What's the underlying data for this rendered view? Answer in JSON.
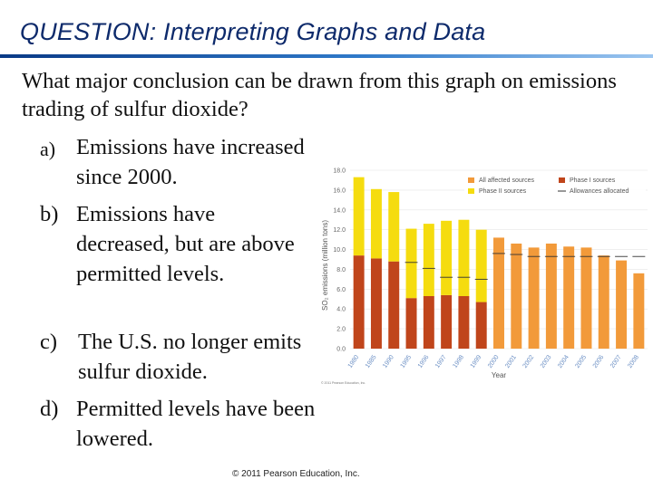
{
  "slide": {
    "title": "QUESTION: Interpreting Graphs and Data",
    "question": "What major conclusion can be drawn from this graph on emissions trading of sulfur dioxide?",
    "options": [
      {
        "label": "a)",
        "text": "Emissions have increased since 2000."
      },
      {
        "label": "b)",
        "text": "Emissions have decreased, but are above permitted levels."
      },
      {
        "label": "c)",
        "text": "The U.S. no longer emits sulfur dioxide."
      },
      {
        "label": "d)",
        "text": "Permitted levels have been lowered."
      }
    ],
    "footer": "© 2011 Pearson Education, Inc."
  },
  "chart_data": {
    "type": "bar",
    "xlabel": "Year",
    "ylabel": "SO₂ emissions (million tons)",
    "ylim": [
      0,
      18
    ],
    "yticks": [
      "0.0",
      "2.0",
      "4.0",
      "6.0",
      "8.0",
      "10.0",
      "12.0",
      "14.0",
      "16.0",
      "18.0"
    ],
    "categories": [
      "1980",
      "1985",
      "1990",
      "1995",
      "1996",
      "1997",
      "1998",
      "1999",
      "2000",
      "2001",
      "2002",
      "2003",
      "2004",
      "2005",
      "2006",
      "2007",
      "2008"
    ],
    "series": [
      {
        "name": "Phase I sources",
        "color": "#c0451b",
        "values": [
          9.4,
          9.1,
          8.8,
          5.1,
          5.3,
          5.4,
          5.3,
          4.7,
          null,
          null,
          null,
          null,
          null,
          null,
          null,
          null,
          null
        ]
      },
      {
        "name": "Phase II sources",
        "color": "#f5dc0f",
        "values": [
          7.9,
          7.0,
          7.0,
          7.0,
          7.3,
          7.5,
          7.7,
          7.3,
          null,
          null,
          null,
          null,
          null,
          null,
          null,
          null,
          null
        ]
      },
      {
        "name": "All affected sources",
        "color": "#f29a3a",
        "values": [
          null,
          null,
          null,
          null,
          null,
          null,
          null,
          null,
          11.2,
          10.6,
          10.2,
          10.6,
          10.3,
          10.2,
          9.4,
          8.9,
          7.6
        ]
      }
    ],
    "allowances": {
      "name": "Allowances allocated",
      "values": [
        null,
        null,
        null,
        8.7,
        8.1,
        7.2,
        7.2,
        7.0,
        9.6,
        9.5,
        9.3,
        9.3,
        9.3,
        9.3,
        9.3,
        9.3,
        9.3
      ]
    },
    "legend": {
      "placement": "top-right"
    },
    "grid": true,
    "credit": "© 2011 Pearson Education, Inc."
  }
}
